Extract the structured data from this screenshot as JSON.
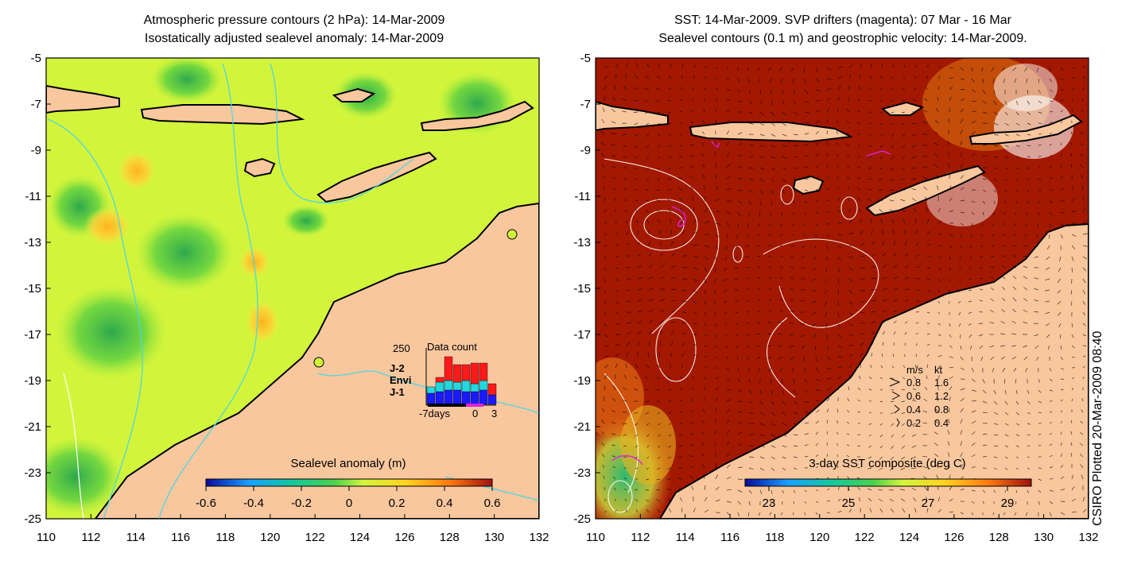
{
  "left_panel": {
    "title_line1": "Atmospheric pressure contours (2 hPa): 14-Mar-2009",
    "title_line2": "Isostatically adjusted sealevel anomaly: 14-Mar-2009",
    "colorbar_label": "Sealevel anomaly (m)",
    "colorbar_ticks": [
      "-0.6",
      "-0.4",
      "-0.2",
      "0",
      "0.2",
      "0.4",
      "0.6"
    ],
    "inset": {
      "title": "Data count",
      "y_max_label": "250",
      "x_labels": [
        "-7days",
        "0",
        "3"
      ],
      "legend": [
        {
          "label": "J-2",
          "color": "#ff1a1a"
        },
        {
          "label": "Envi",
          "color": "#22d8e0"
        },
        {
          "label": "J-1",
          "color": "#1a1aff"
        }
      ]
    }
  },
  "right_panel": {
    "title_line1": "SST: 14-Mar-2009. SVP drifters (magenta): 07 Mar - 16 Mar",
    "title_line2": "Sealevel contours (0.1 m) and geostrophic velocity: 14-Mar-2009.",
    "colorbar_label": "3-day SST composite (deg C)",
    "colorbar_ticks": [
      "23",
      "25",
      "27",
      "29"
    ],
    "velocity_legend": {
      "header_ms": "m/s",
      "header_kt": "kt",
      "rows": [
        {
          "ms": "0.8",
          "kt": "1.6"
        },
        {
          "ms": "0.6",
          "kt": "1.2"
        },
        {
          "ms": "0.4",
          "kt": "0.8"
        },
        {
          "ms": "0.2",
          "kt": "0.4"
        }
      ]
    }
  },
  "axes": {
    "x_ticks": [
      "110",
      "112",
      "114",
      "116",
      "118",
      "120",
      "122",
      "124",
      "126",
      "128",
      "130",
      "132"
    ],
    "y_ticks": [
      "-5",
      "-7",
      "-9",
      "-11",
      "-13",
      "-15",
      "-17",
      "-19",
      "-21",
      "-23",
      "-25"
    ]
  },
  "credit": "CSIRO Plotted 20-Mar-2009 08:40",
  "colors": {
    "land": "#f9c79e",
    "sla_base": "#d2f53c",
    "sst_base": "#a31800",
    "contour_cyan": "#4fd6e0",
    "drifter": "#e020e0"
  }
}
